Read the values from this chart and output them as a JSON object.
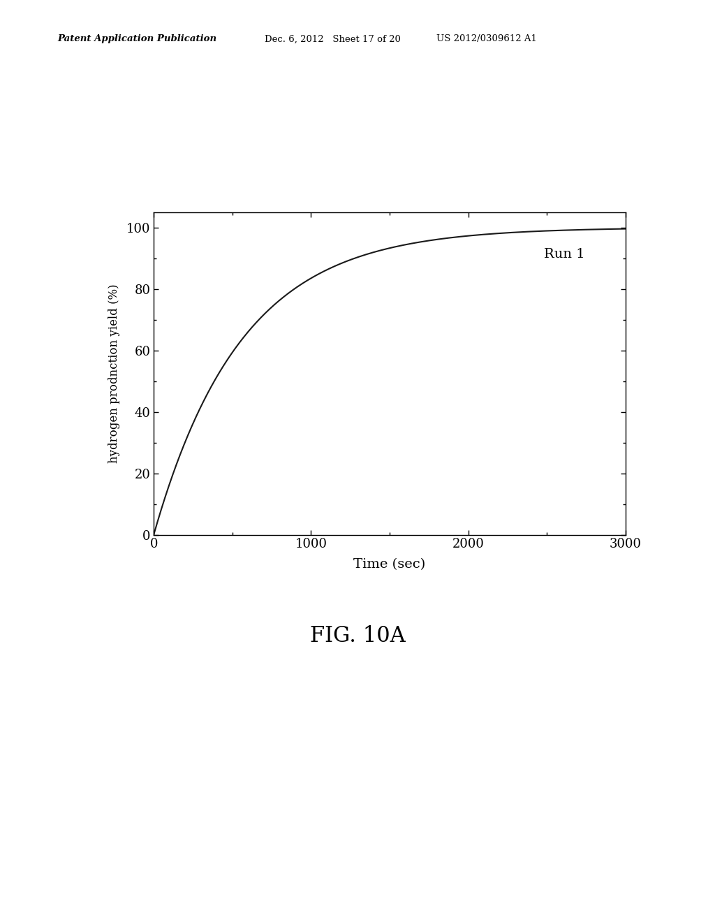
{
  "title": "FIG. 10A",
  "xlabel": "Time (sec)",
  "ylabel": "hydrogen prodnction yield (%)",
  "xlim": [
    0,
    3000
  ],
  "ylim": [
    0,
    100
  ],
  "ylim_display": [
    0,
    105
  ],
  "xticks": [
    0,
    1000,
    2000,
    3000
  ],
  "yticks": [
    0,
    20,
    40,
    60,
    80,
    100
  ],
  "legend_label": "Run 1",
  "line_color": "#1a1a1a",
  "background_color": "#ffffff",
  "header_left": "Patent Application Publication",
  "header_mid": "Dec. 6, 2012   Sheet 17 of 20",
  "header_right": "US 2012/0309612 A1",
  "curve_k": 0.0018,
  "curve_max": 100.0
}
